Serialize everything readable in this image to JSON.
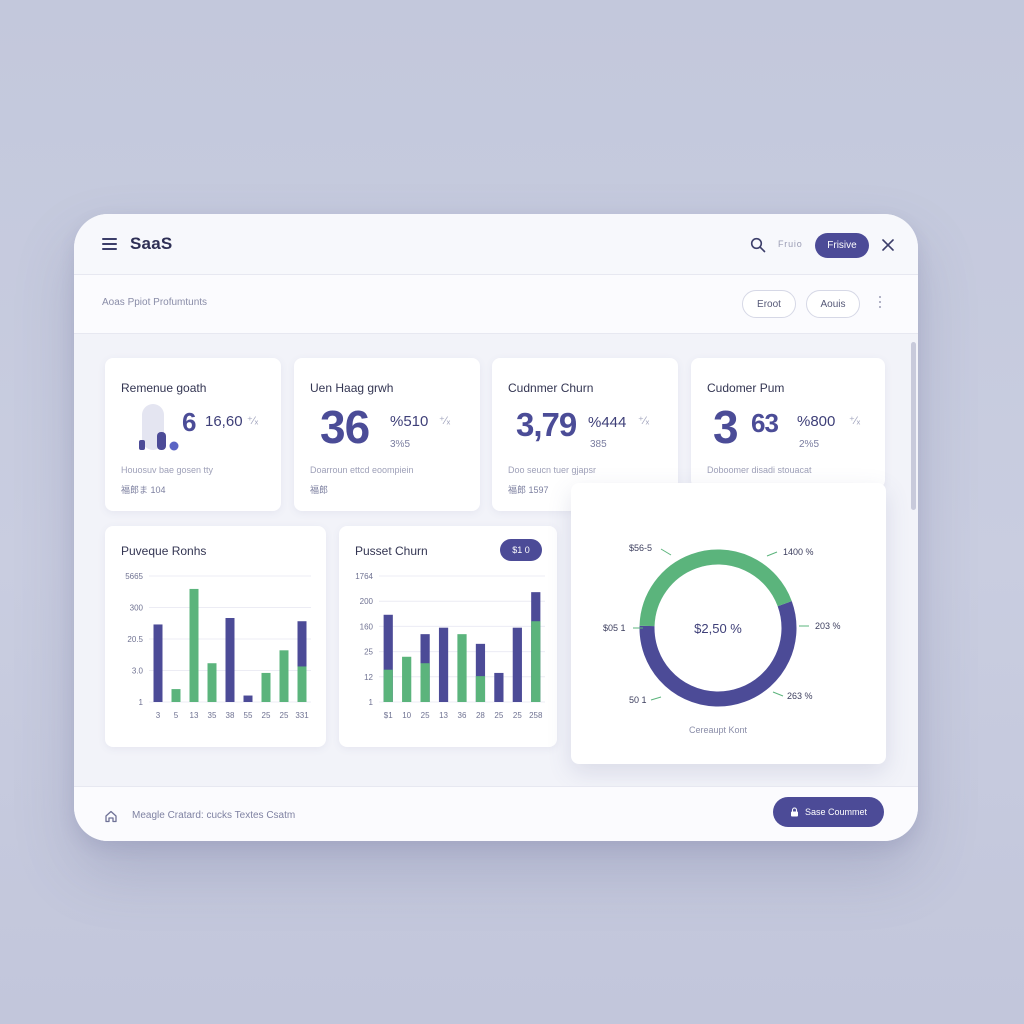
{
  "header": {
    "title": "SaaS",
    "search_hint": "Fruio",
    "primary_button": "Frisive"
  },
  "subheader": {
    "breadcrumb": "Aoas Ppiot Profumtunts",
    "buttons": [
      "Eroot",
      "Aouis"
    ]
  },
  "kpis": [
    {
      "title": "Remenue goath",
      "big": "6",
      "mid": "16,60",
      "sub": "",
      "caption": "Houosuv bae gosen tty",
      "meta": "福郎ま    104"
    },
    {
      "title": "Uen Haag grwh",
      "big": "36",
      "mid": "%510",
      "sub": "3%5",
      "caption": "Doarroun  ettcd eoompiein",
      "meta": "福郎"
    },
    {
      "title": "Cudnmer Churn",
      "big": "3,79",
      "mid": "%444",
      "sub": "385",
      "caption": "Doo seucn tuer gjapsr",
      "meta": "福郎      1597"
    },
    {
      "title": "Cudomer Pum",
      "big": "3",
      "mid": "63",
      "extra": "%800",
      "sub": "2%5",
      "caption": "Doboomer disadi stouacat",
      "meta": ""
    }
  ],
  "colors": {
    "primary": "#4c4b97",
    "secondary": "#5bb47c"
  },
  "charts": {
    "revenue": {
      "title": "Puveque Ronhs",
      "chart_data": {
        "type": "bar",
        "y_ticks": [
          "5665",
          "300",
          "20.5",
          "3.0",
          "1"
        ],
        "x_ticks": [
          "3",
          "5",
          "13",
          "35",
          "38",
          "55",
          "25",
          "25",
          "331"
        ],
        "series": [
          {
            "color": "#4c4b97",
            "values": [
              2.4,
              0,
              0,
              0,
              2.6,
              0.2,
              0,
              0,
              2.5
            ]
          },
          {
            "color": "#5bb47c",
            "values": [
              0,
              0.4,
              3.5,
              1.2,
              0,
              0,
              0.9,
              1.6,
              1.1
            ]
          }
        ]
      }
    },
    "churn": {
      "title": "Pusset Churn",
      "badge": "$1 0",
      "chart_data": {
        "type": "bar",
        "y_ticks": [
          "1764",
          "200",
          "160",
          "25",
          "12",
          "1"
        ],
        "x_ticks": [
          "$1",
          "10",
          "25",
          "13",
          "36",
          "28",
          "25",
          "25",
          "258"
        ],
        "series": [
          {
            "color": "#4c4b97",
            "values": [
              2.7,
              0,
              2.1,
              2.3,
              0,
              1.8,
              0.9,
              2.3,
              3.4
            ]
          },
          {
            "color": "#5bb47c",
            "values": [
              1.0,
              1.4,
              1.2,
              0,
              2.1,
              0.8,
              0,
              0,
              2.5
            ]
          }
        ]
      }
    },
    "donut": {
      "center_label": "$2,50 %",
      "caption": "Cereaupt Kont",
      "chart_data": {
        "type": "pie",
        "slices": [
          {
            "value": 56,
            "color": "#4c4b97"
          },
          {
            "value": 44,
            "color": "#5bb47c"
          }
        ],
        "labels": [
          "$56-5",
          "1400 %",
          "$05 1",
          "203 %",
          "50 1",
          "263 %"
        ]
      }
    }
  },
  "footer": {
    "text": "Meagle Cratard: cucks Textes Csatm",
    "button": "Sase Coummet"
  }
}
